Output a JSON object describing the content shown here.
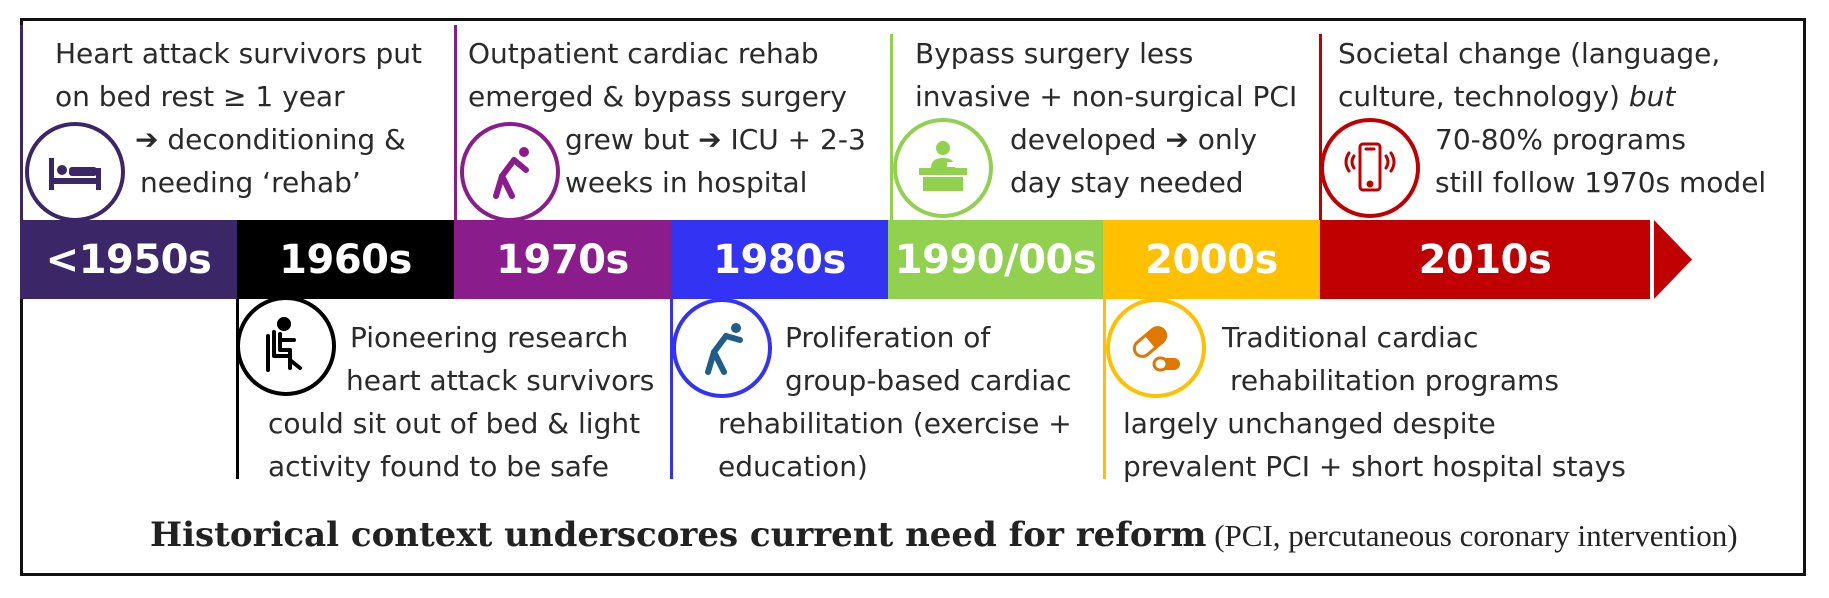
{
  "colors": {
    "e1950s": "#3b2767",
    "e1960s": "#000000",
    "e1970s": "#8a1c8b",
    "e1980s": "#3333f4",
    "e1990s": "#92d050",
    "e2000s": "#ffc000",
    "e2010s": "#c00000"
  },
  "eras": [
    {
      "label": "<1950s"
    },
    {
      "label": "1960s"
    },
    {
      "label": "1970s"
    },
    {
      "label": "1980s"
    },
    {
      "label": "1990/00s"
    },
    {
      "label": "2000s"
    },
    {
      "label": "2010s"
    }
  ],
  "events": {
    "e1950s": {
      "icon": "bed-icon",
      "lines": [
        "Heart attack survivors put",
        "on bed rest ≥ 1 year",
        "➔ deconditioning &",
        "needing ‘rehab’"
      ]
    },
    "e1960s": {
      "icon": "person-sitting-chair-icon",
      "lines": [
        "Pioneering research",
        "heart attack survivors",
        "could sit out of bed & light",
        "activity found to be safe"
      ]
    },
    "e1970s": {
      "icon": "stretching-person-icon",
      "lines": [
        "Outpatient cardiac rehab",
        "emerged & bypass surgery",
        "grew but ➔ ICU + 2-3",
        "weeks in hospital"
      ]
    },
    "e1980s": {
      "icon": "stretching-person-icon",
      "lines": [
        "Proliferation of",
        "group-based cardiac",
        "rehabilitation (exercise +",
        "education)"
      ]
    },
    "e1990s": {
      "icon": "person-at-desk-icon",
      "lines": [
        "Bypass surgery less",
        "invasive + non-surgical PCI",
        "developed ➔ only",
        "day stay needed"
      ]
    },
    "e2000s": {
      "icon": "pills-icon",
      "lines": [
        "Traditional cardiac",
        "rehabilitation programs",
        "largely unchanged despite",
        "prevalent PCI + short hospital stays"
      ]
    },
    "e2010s": {
      "icon": "smartphone-icon",
      "lines": [
        "Societal change (language,",
        "culture, technology) ",
        "70-80% programs",
        "still follow 1970s model"
      ],
      "emphasis": "but"
    }
  },
  "footer": {
    "main": "Historical context underscores current need for reform",
    "note": " (PCI, percutaneous coronary intervention)"
  }
}
